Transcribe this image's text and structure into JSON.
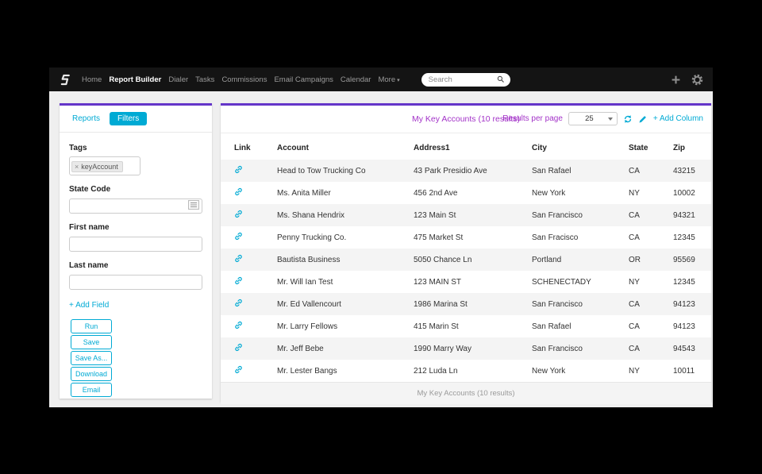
{
  "navbar": {
    "items": [
      {
        "label": "Home",
        "active": false,
        "caret": false
      },
      {
        "label": "Report Builder",
        "active": true,
        "caret": false
      },
      {
        "label": "Dialer",
        "active": false,
        "caret": false
      },
      {
        "label": "Tasks",
        "active": false,
        "caret": false
      },
      {
        "label": "Commissions",
        "active": false,
        "caret": false
      },
      {
        "label": "Email Campaigns",
        "active": false,
        "caret": false
      },
      {
        "label": "Calendar",
        "active": false,
        "caret": false
      },
      {
        "label": "More",
        "active": false,
        "caret": true
      }
    ],
    "search_placeholder": "Search"
  },
  "sidebar": {
    "tabs": [
      {
        "label": "Reports",
        "active": false
      },
      {
        "label": "Filters",
        "active": true
      }
    ],
    "labels": {
      "tags": "Tags",
      "state_code": "State Code",
      "first_name": "First name",
      "last_name": "Last name"
    },
    "tag_chip": "keyAccount",
    "state_code_value": "",
    "first_name_value": "",
    "last_name_value": "",
    "add_field_label": "+ Add Field",
    "buttons": [
      "Run",
      "Save",
      "Save As...",
      "Download",
      "Email"
    ]
  },
  "report": {
    "title": "My Key Accounts (10 results)",
    "results_per_page_label": "Results per page",
    "page_size": "25",
    "add_column_label": "+ Add Column",
    "footer": "My Key Accounts (10 results)",
    "columns": [
      "Link",
      "Account",
      "Address1",
      "City",
      "State",
      "Zip"
    ],
    "rows": [
      {
        "account": "Head to Tow Trucking Co",
        "address1": "43 Park Presidio Ave",
        "city": "San Rafael",
        "state": "CA",
        "zip": "43215"
      },
      {
        "account": "Ms. Anita Miller",
        "address1": "456 2nd Ave",
        "city": "New York",
        "state": "NY",
        "zip": "10002"
      },
      {
        "account": "Ms. Shana Hendrix",
        "address1": "123 Main St",
        "city": "San Francisco",
        "state": "CA",
        "zip": "94321"
      },
      {
        "account": "Penny Trucking Co.",
        "address1": "475 Market St",
        "city": "San Fracisco",
        "state": "CA",
        "zip": "12345"
      },
      {
        "account": "Bautista Business",
        "address1": "5050 Chance Ln",
        "city": "Portland",
        "state": "OR",
        "zip": "95569"
      },
      {
        "account": "Mr. Will Ian Test",
        "address1": "123 MAIN ST",
        "city": "SCHENECTADY",
        "state": "NY",
        "zip": "12345"
      },
      {
        "account": "Mr. Ed Vallencourt",
        "address1": "1986 Marina St",
        "city": "San Francisco",
        "state": "CA",
        "zip": "94123"
      },
      {
        "account": "Mr. Larry Fellows",
        "address1": "415 Marin St",
        "city": "San Rafael",
        "state": "CA",
        "zip": "94123"
      },
      {
        "account": "Mr. Jeff Bebe",
        "address1": "1990 Marry Way",
        "city": "San Francisco",
        "state": "CA",
        "zip": "94543"
      },
      {
        "account": "Mr. Lester Bangs",
        "address1": "212 Luda Ln",
        "city": "New York",
        "state": "NY",
        "zip": "10011"
      }
    ]
  },
  "icons": {
    "caret_down": "▾",
    "remove_tag": "×"
  },
  "colors": {
    "accent_cyan": "#00aad4",
    "accent_purple": "#a333c8",
    "card_top_border": "#6435c9",
    "navbar_bg": "#141414"
  }
}
